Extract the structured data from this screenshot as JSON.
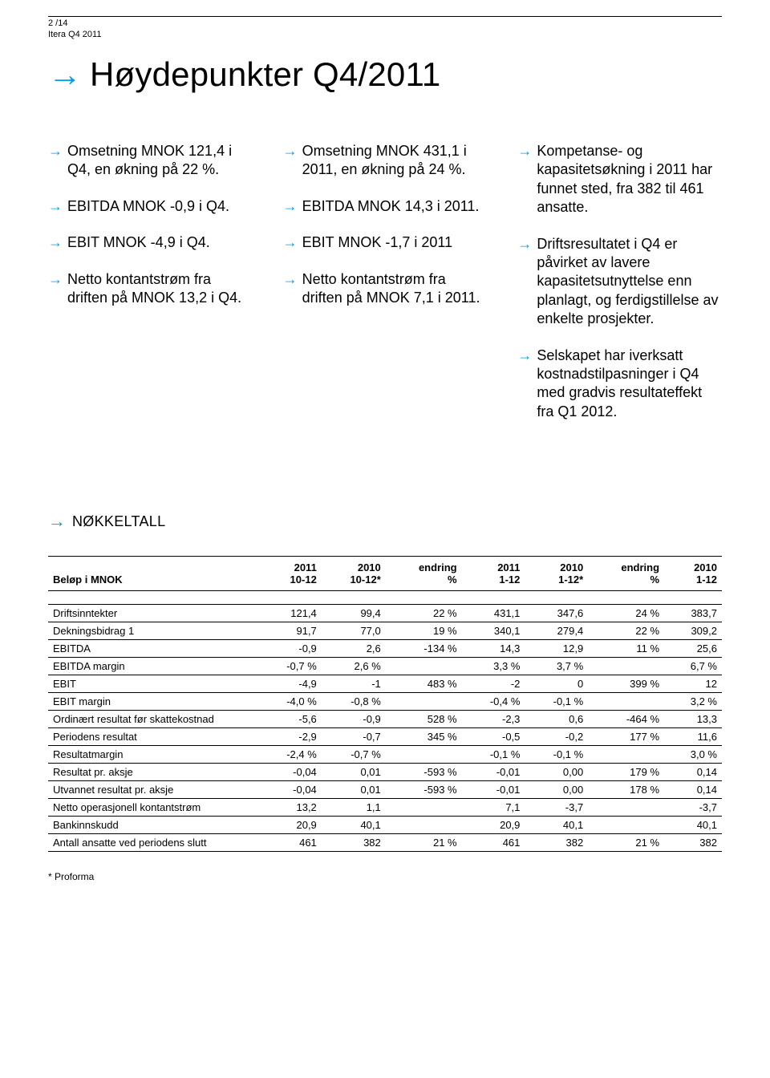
{
  "header": {
    "pageinfo": "2 /14",
    "docname": "Itera Q4 2011"
  },
  "title": "Høydepunkter Q4/2011",
  "columns": {
    "c1": [
      "Omsetning MNOK 121,4 i Q4, en økning på 22 %.",
      "EBITDA MNOK -0,9 i Q4.",
      "EBIT MNOK -4,9 i Q4.",
      "Netto kontantstrøm fra driften på MNOK 13,2 i Q4."
    ],
    "c2": [
      "Omsetning MNOK 431,1 i 2011, en økning på 24 %.",
      "EBITDA MNOK 14,3 i 2011.",
      "EBIT MNOK -1,7 i 2011",
      "Netto kontantstrøm fra driften på MNOK 7,1 i 2011."
    ],
    "c3": [
      "Kompetanse- og kapasitetsøkning i 2011 har funnet sted, fra 382 til 461 ansatte.",
      "Driftsresultatet i Q4 er påvirket av lavere kapasitetsutnyttelse enn planlagt, og ferdigstillelse av enkelte prosjekter.",
      "Selskapet har iverksatt kostnadstilpasninger i Q4 med gradvis resultateffekt fra Q1 2012."
    ]
  },
  "section_title": "NØKKELTALL",
  "table": {
    "header_label": "Beløp i MNOK",
    "head_top": [
      "2011",
      "2010",
      "endring",
      "2011",
      "2010",
      "endring",
      "2010"
    ],
    "head_bot": [
      "10-12",
      "10-12*",
      "%",
      "1-12",
      "1-12*",
      "%",
      "1-12"
    ],
    "rows": [
      [
        "Driftsinntekter",
        "121,4",
        "99,4",
        "22 %",
        "431,1",
        "347,6",
        "24 %",
        "383,7"
      ],
      [
        "Dekningsbidrag 1",
        "91,7",
        "77,0",
        "19 %",
        "340,1",
        "279,4",
        "22 %",
        "309,2"
      ],
      [
        "EBITDA",
        "-0,9",
        "2,6",
        "-134 %",
        "14,3",
        "12,9",
        "11 %",
        "25,6"
      ],
      [
        "EBITDA margin",
        "-0,7 %",
        "2,6 %",
        "",
        "3,3 %",
        "3,7 %",
        "",
        "6,7 %"
      ],
      [
        "EBIT",
        "-4,9",
        "-1",
        "483 %",
        "-2",
        "0",
        "399 %",
        "12"
      ],
      [
        "EBIT margin",
        "-4,0 %",
        "-0,8 %",
        "",
        "-0,4 %",
        "-0,1 %",
        "",
        "3,2 %"
      ],
      [
        "Ordinært resultat før skattekostnad",
        "-5,6",
        "-0,9",
        "528 %",
        "-2,3",
        "0,6",
        "-464 %",
        "13,3"
      ],
      [
        "Periodens resultat",
        "-2,9",
        "-0,7",
        "345 %",
        "-0,5",
        "-0,2",
        "177 %",
        "11,6"
      ],
      [
        "Resultatmargin",
        "-2,4 %",
        "-0,7 %",
        "",
        "-0,1 %",
        "-0,1 %",
        "",
        "3,0 %"
      ],
      [
        "Resultat pr. aksje",
        "-0,04",
        "0,01",
        "-593 %",
        "-0,01",
        "0,00",
        "179 %",
        "0,14"
      ],
      [
        "Utvannet resultat pr. aksje",
        "-0,04",
        "0,01",
        "-593 %",
        "-0,01",
        "0,00",
        "178 %",
        "0,14"
      ],
      [
        "Netto operasjonell kontantstrøm",
        "13,2",
        "1,1",
        "",
        "7,1",
        "-3,7",
        "",
        "-3,7"
      ],
      [
        "Bankinnskudd",
        "20,9",
        "40,1",
        "",
        "20,9",
        "40,1",
        "",
        "40,1"
      ],
      [
        "Antall ansatte ved periodens slutt",
        "461",
        "382",
        "21 %",
        "461",
        "382",
        "21 %",
        "382"
      ]
    ]
  },
  "footnote": "* Proforma",
  "colors": {
    "accent": "#009fe3",
    "text": "#000000",
    "bg": "#ffffff"
  }
}
